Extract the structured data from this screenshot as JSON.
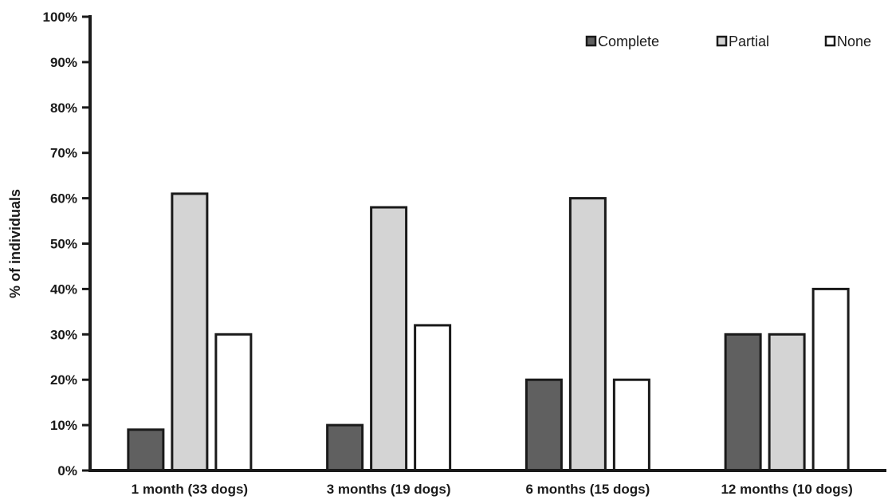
{
  "chart_data": {
    "type": "bar",
    "title": "",
    "xlabel": "",
    "ylabel": "% of individuals",
    "ylim": [
      0,
      100
    ],
    "yticks": [
      "0%",
      "10%",
      "20%",
      "30%",
      "40%",
      "50%",
      "60%",
      "70%",
      "80%",
      "90%",
      "100%"
    ],
    "categories": [
      "1 month (33 dogs)",
      "3 months (19 dogs)",
      "6 months (15 dogs)",
      "12 months (10 dogs)"
    ],
    "series": [
      {
        "name": "Complete",
        "values": [
          9,
          10,
          20,
          30
        ],
        "color": "#606060"
      },
      {
        "name": "Partial",
        "values": [
          61,
          58,
          60,
          30
        ],
        "color": "#d4d4d4"
      },
      {
        "name": "None",
        "values": [
          30,
          32,
          20,
          40
        ],
        "color": "#ffffff"
      }
    ],
    "grid": false,
    "legend_position": "top-right"
  }
}
